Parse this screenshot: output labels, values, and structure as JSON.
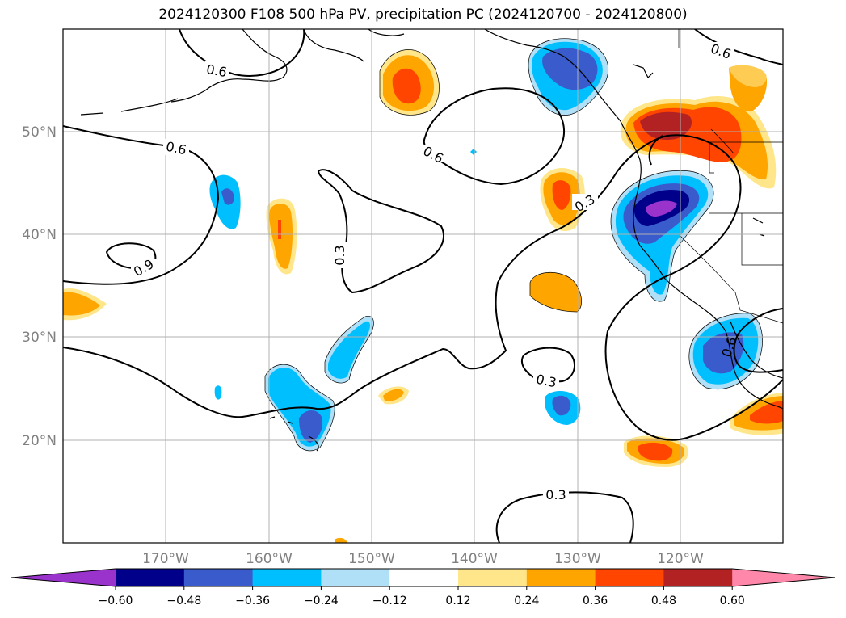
{
  "title": "2024120300 F108 500 hPa PV, precipitation PC (2024120700 - 2024120800)",
  "map": {
    "lon_range": [
      -180,
      -110
    ],
    "lat_range": [
      10,
      60
    ],
    "gridlines": true,
    "lon_ticks": [
      "170°W",
      "160°W",
      "150°W",
      "140°W",
      "130°W",
      "120°W"
    ],
    "lat_ticks": [
      "50°N",
      "40°N",
      "30°N",
      "20°N"
    ],
    "contour_labels": [
      "0.6",
      "0.6",
      "0.6",
      "0.6",
      "0.9",
      "0.3",
      "0.3",
      "0.3",
      "0.3",
      "0.6"
    ]
  },
  "colorbar": {
    "ticks": [
      "−0.60",
      "−0.48",
      "−0.36",
      "−0.24",
      "−0.12",
      "0.12",
      "0.24",
      "0.36",
      "0.48",
      "0.60"
    ],
    "colors": [
      "#9933cc",
      "#00008b",
      "#3a5bcc",
      "#00bfff",
      "#b0e0f8",
      "#ffffff",
      "#ffe68a",
      "#ffa500",
      "#ff4500",
      "#b22222",
      "#ff88aa"
    ]
  }
}
